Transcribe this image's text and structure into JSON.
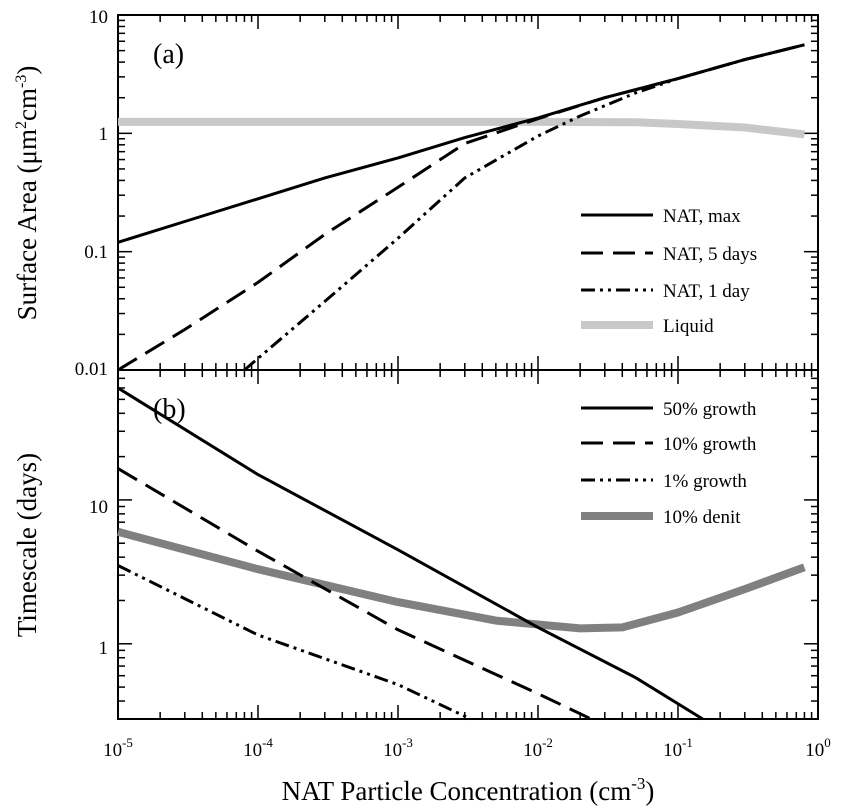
{
  "chart_data": [
    {
      "type": "line",
      "panel_label": "(a)",
      "ylabel": "Surface Area (μm²cm⁻³)",
      "ylabel_parts": {
        "base": "Surface Area (μm",
        "sup1": "2",
        "mid": "cm",
        "sup2": "-3",
        "end": ")"
      },
      "xscale": "log",
      "yscale": "log",
      "xlim": [
        1e-05,
        1
      ],
      "ylim": [
        0.01,
        10
      ],
      "y_ticks": [
        "0.01",
        "0.1",
        "1",
        "10"
      ],
      "legend_position": "lower-right",
      "series": [
        {
          "name": "NAT, max",
          "color": "#000000",
          "style": "solid",
          "x": [
            1e-05,
            3e-05,
            0.0001,
            0.0003,
            0.001,
            0.003,
            0.01,
            0.03,
            0.1,
            0.3,
            0.8
          ],
          "y": [
            0.12,
            0.18,
            0.28,
            0.42,
            0.62,
            0.92,
            1.35,
            2.0,
            2.9,
            4.2,
            5.6
          ]
        },
        {
          "name": "NAT, 5 days",
          "color": "#000000",
          "style": "dash",
          "x": [
            1e-05,
            3e-05,
            0.0001,
            0.0003,
            0.001,
            0.003,
            0.01,
            0.03,
            0.1,
            0.3,
            0.8
          ],
          "y": [
            0.01,
            0.022,
            0.055,
            0.14,
            0.35,
            0.82,
            1.33,
            2.0,
            2.9,
            4.2,
            5.6
          ]
        },
        {
          "name": "NAT, 1 day",
          "color": "#000000",
          "style": "dash-dot-dot",
          "x": [
            8e-05,
            0.0003,
            0.001,
            0.003,
            0.01,
            0.02,
            0.05,
            0.1,
            0.3,
            0.8
          ],
          "y": [
            0.01,
            0.038,
            0.13,
            0.42,
            0.95,
            1.4,
            2.2,
            2.9,
            4.2,
            5.6
          ]
        },
        {
          "name": "Liquid",
          "color": "#c8c8c8",
          "style": "solid-thick",
          "x": [
            1e-05,
            0.0001,
            0.001,
            0.01,
            0.05,
            0.1,
            0.3,
            0.8
          ],
          "y": [
            1.25,
            1.25,
            1.25,
            1.25,
            1.24,
            1.2,
            1.12,
            0.98
          ]
        }
      ]
    },
    {
      "type": "line",
      "panel_label": "(b)",
      "ylabel": "Timescale (days)",
      "xlabel": "NAT Particle Concentration (cm⁻³)",
      "xlabel_parts": {
        "base": "NAT Particle Concentration (cm",
        "sup": "-3",
        "end": ")"
      },
      "xscale": "log",
      "yscale": "log",
      "xlim": [
        1e-05,
        1
      ],
      "ylim": [
        0.3,
        80
      ],
      "x_ticks": [
        {
          "base": "10",
          "exp": "-5"
        },
        {
          "base": "10",
          "exp": "-4"
        },
        {
          "base": "10",
          "exp": "-3"
        },
        {
          "base": "10",
          "exp": "-2"
        },
        {
          "base": "10",
          "exp": "-1"
        },
        {
          "base": "10",
          "exp": "0"
        }
      ],
      "y_ticks": [
        "1",
        "10"
      ],
      "legend_position": "top-right",
      "series": [
        {
          "name": "50% growth",
          "color": "#000000",
          "style": "solid",
          "x": [
            1e-05,
            0.0001,
            0.001,
            0.01,
            0.05,
            0.15
          ],
          "y": [
            60,
            15,
            4.5,
            1.3,
            0.58,
            0.3
          ]
        },
        {
          "name": "10% growth",
          "color": "#000000",
          "style": "dash",
          "x": [
            1e-05,
            0.0001,
            0.001,
            0.01,
            0.024
          ],
          "y": [
            16.5,
            4.4,
            1.25,
            0.45,
            0.3
          ]
        },
        {
          "name": "1% growth",
          "color": "#000000",
          "style": "dash-dot-dot",
          "x": [
            1e-05,
            0.0001,
            0.001,
            0.0033
          ],
          "y": [
            3.5,
            1.15,
            0.52,
            0.3
          ]
        },
        {
          "name": "10% denit",
          "color": "#808080",
          "style": "solid-thick",
          "x": [
            1e-05,
            0.0001,
            0.001,
            0.005,
            0.02,
            0.04,
            0.1,
            0.3,
            0.8
          ],
          "y": [
            6.0,
            3.3,
            1.95,
            1.45,
            1.28,
            1.3,
            1.65,
            2.4,
            3.4
          ]
        }
      ]
    }
  ]
}
